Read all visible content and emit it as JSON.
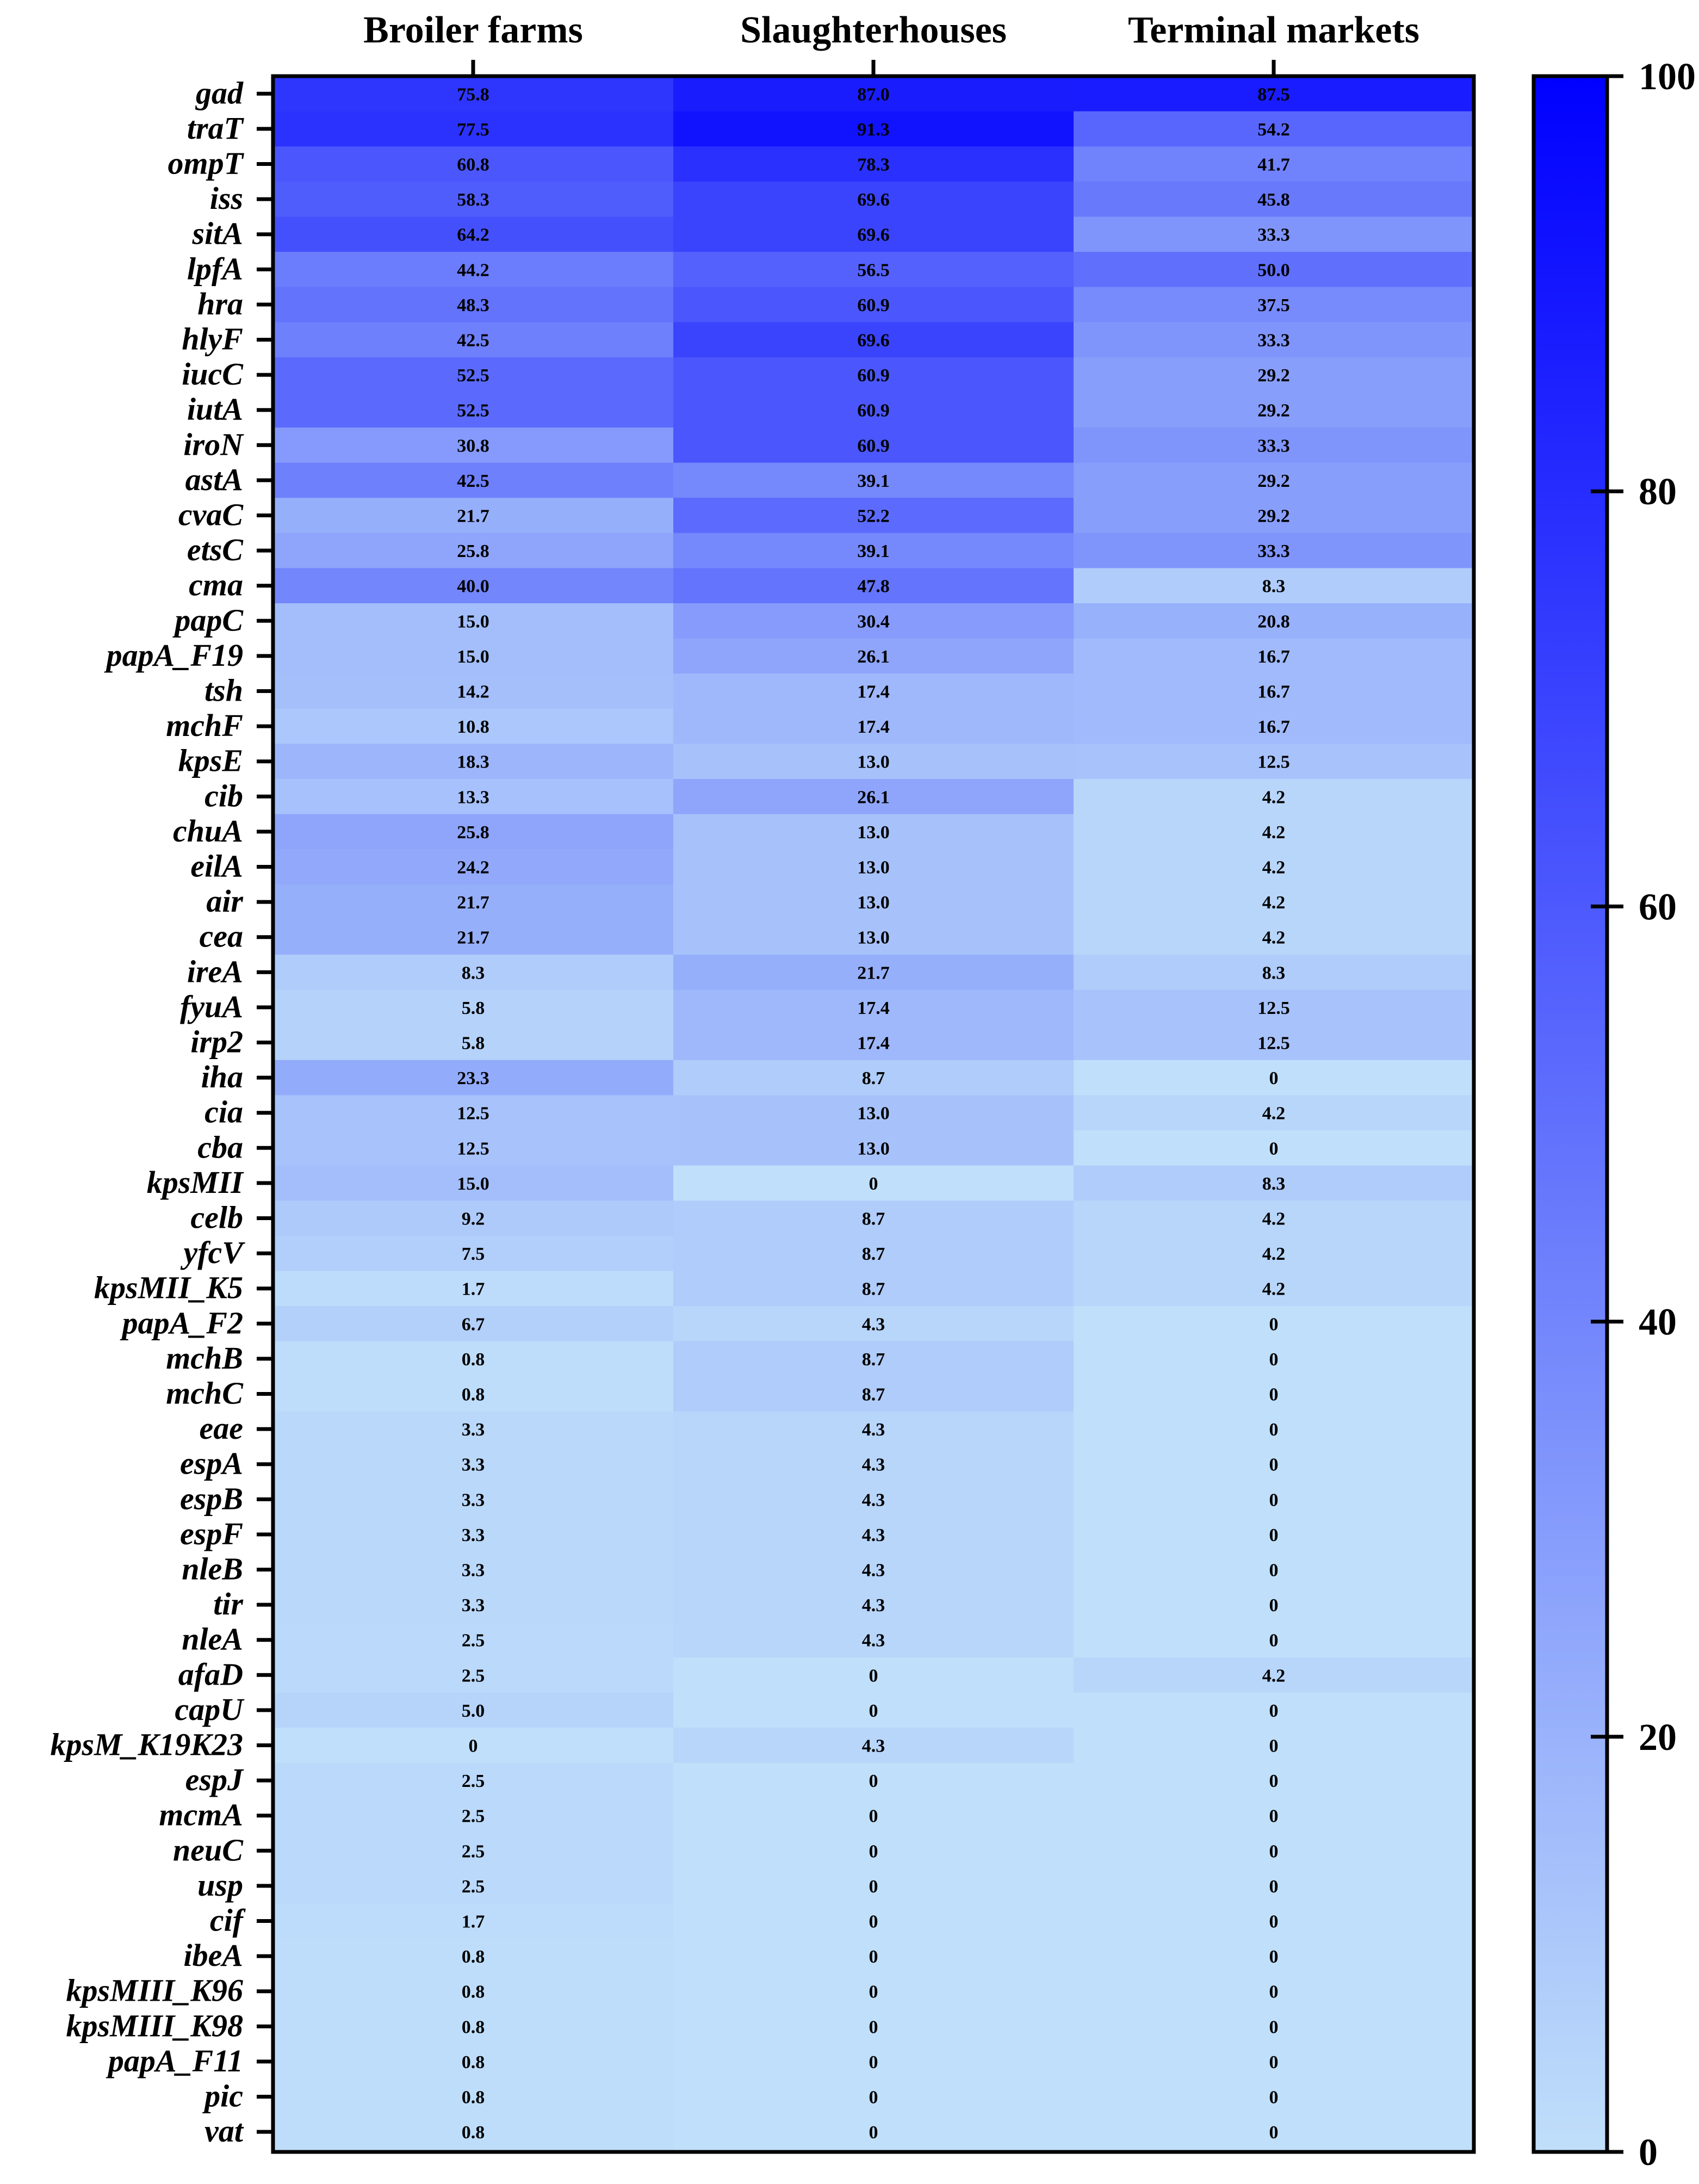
{
  "chart_data": {
    "type": "heatmap",
    "title": "",
    "columns": [
      "Broiler farms",
      "Slaughterhouses",
      "Terminal markets"
    ],
    "rows": [
      "gad",
      "traT",
      "ompT",
      "iss",
      "sitA",
      "lpfA",
      "hra",
      "hlyF",
      "iucC",
      "iutA",
      "iroN",
      "astA",
      "cvaC",
      "etsC",
      "cma",
      "papC",
      "papA_F19",
      "tsh",
      "mchF",
      "kpsE",
      "cib",
      "chuA",
      "eilA",
      "air",
      "cea",
      "ireA",
      "fyuA",
      "irp2",
      "iha",
      "cia",
      "cba",
      "kpsMII",
      "celb",
      "yfcV",
      "kpsMII_K5",
      "papA_F2",
      "mchB",
      "mchC",
      "eae",
      "espA",
      "espB",
      "espF",
      "nleB",
      "tir",
      "nleA",
      "afaD",
      "capU",
      "kpsM_K19K23",
      "espJ",
      "mcmA",
      "neuC",
      "usp",
      "cif",
      "ibeA",
      "kpsMIII_K96",
      "kpsMIII_K98",
      "papA_F11",
      "pic",
      "vat"
    ],
    "values": [
      [
        "75.8",
        "87.0",
        "87.5"
      ],
      [
        "77.5",
        "91.3",
        "54.2"
      ],
      [
        "60.8",
        "78.3",
        "41.7"
      ],
      [
        "58.3",
        "69.6",
        "45.8"
      ],
      [
        "64.2",
        "69.6",
        "33.3"
      ],
      [
        "44.2",
        "56.5",
        "50.0"
      ],
      [
        "48.3",
        "60.9",
        "37.5"
      ],
      [
        "42.5",
        "69.6",
        "33.3"
      ],
      [
        "52.5",
        "60.9",
        "29.2"
      ],
      [
        "52.5",
        "60.9",
        "29.2"
      ],
      [
        "30.8",
        "60.9",
        "33.3"
      ],
      [
        "42.5",
        "39.1",
        "29.2"
      ],
      [
        "21.7",
        "52.2",
        "29.2"
      ],
      [
        "25.8",
        "39.1",
        "33.3"
      ],
      [
        "40.0",
        "47.8",
        "8.3"
      ],
      [
        "15.0",
        "30.4",
        "20.8"
      ],
      [
        "15.0",
        "26.1",
        "16.7"
      ],
      [
        "14.2",
        "17.4",
        "16.7"
      ],
      [
        "10.8",
        "17.4",
        "16.7"
      ],
      [
        "18.3",
        "13.0",
        "12.5"
      ],
      [
        "13.3",
        "26.1",
        "4.2"
      ],
      [
        "25.8",
        "13.0",
        "4.2"
      ],
      [
        "24.2",
        "13.0",
        "4.2"
      ],
      [
        "21.7",
        "13.0",
        "4.2"
      ],
      [
        "21.7",
        "13.0",
        "4.2"
      ],
      [
        "8.3",
        "21.7",
        "8.3"
      ],
      [
        "5.8",
        "17.4",
        "12.5"
      ],
      [
        "5.8",
        "17.4",
        "12.5"
      ],
      [
        "23.3",
        "8.7",
        "0"
      ],
      [
        "12.5",
        "13.0",
        "4.2"
      ],
      [
        "12.5",
        "13.0",
        "0"
      ],
      [
        "15.0",
        "0",
        "8.3"
      ],
      [
        "9.2",
        "8.7",
        "4.2"
      ],
      [
        "7.5",
        "8.7",
        "4.2"
      ],
      [
        "1.7",
        "8.7",
        "4.2"
      ],
      [
        "6.7",
        "4.3",
        "0"
      ],
      [
        "0.8",
        "8.7",
        "0"
      ],
      [
        "0.8",
        "8.7",
        "0"
      ],
      [
        "3.3",
        "4.3",
        "0"
      ],
      [
        "3.3",
        "4.3",
        "0"
      ],
      [
        "3.3",
        "4.3",
        "0"
      ],
      [
        "3.3",
        "4.3",
        "0"
      ],
      [
        "3.3",
        "4.3",
        "0"
      ],
      [
        "3.3",
        "4.3",
        "0"
      ],
      [
        "2.5",
        "4.3",
        "0"
      ],
      [
        "2.5",
        "0",
        "4.2"
      ],
      [
        "5.0",
        "0",
        "0"
      ],
      [
        "0",
        "4.3",
        "0"
      ],
      [
        "2.5",
        "0",
        "0"
      ],
      [
        "2.5",
        "0",
        "0"
      ],
      [
        "2.5",
        "0",
        "0"
      ],
      [
        "2.5",
        "0",
        "0"
      ],
      [
        "1.7",
        "0",
        "0"
      ],
      [
        "0.8",
        "0",
        "0"
      ],
      [
        "0.8",
        "0",
        "0"
      ],
      [
        "0.8",
        "0",
        "0"
      ],
      [
        "0.8",
        "0",
        "0"
      ],
      [
        "0.8",
        "0",
        "0"
      ],
      [
        "0.8",
        "0",
        "0"
      ]
    ],
    "colorbar": {
      "min": 0,
      "max": 100,
      "ticks": [
        "0",
        "20",
        "40",
        "60",
        "80",
        "100"
      ],
      "low_color": "#c0dffa",
      "high_color": "#0000ff"
    }
  }
}
